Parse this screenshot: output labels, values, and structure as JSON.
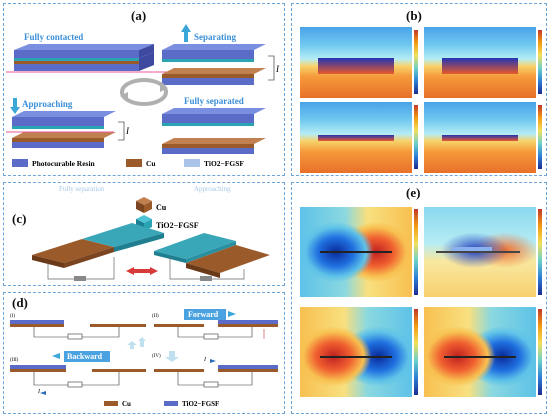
{
  "panel_a": {
    "label": "(a)",
    "states": {
      "fully_contacted": "Fully contacted",
      "separating": "Separating",
      "approaching": "Approaching",
      "fully_separated": "Fully separated"
    },
    "current_symbol": "I",
    "legend": [
      "Photocurable Resin",
      "Cu",
      "TiO2−FGSF"
    ]
  },
  "panel_b": {
    "label": "(b)"
  },
  "panel_c": {
    "label": "(c)",
    "legend": [
      "Cu",
      "TiO2−FGSF"
    ],
    "faint_left": "Fully separation",
    "faint_right": "Approaching"
  },
  "panel_d": {
    "label": "(d)",
    "steps": [
      "(I)",
      "(II)",
      "(III)",
      "(IV)"
    ],
    "forward": "Forward",
    "backward": "Backward",
    "current_symbol": "I",
    "legend": [
      "Cu",
      "TiO2−FGSF"
    ]
  },
  "panel_e": {
    "label": "(e)"
  },
  "colors": {
    "panel_border": "#6fa4d8",
    "resin": "#5a6bc8",
    "cu": "#9a5a2a",
    "fgsf": "#2aa3b3",
    "arrow_blue": "#3aa7d8"
  }
}
